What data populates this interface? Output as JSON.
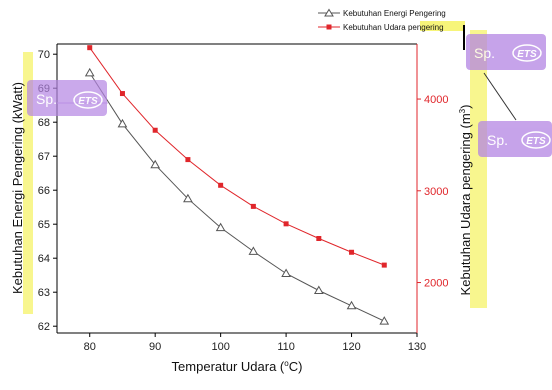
{
  "chart_data": {
    "type": "line",
    "title": "",
    "xlabel": "Temperatur Udara (",
    "xlabel_degree": "o",
    "xlabel_unit": "C)",
    "ylabel_left": "Kebutuhan Energi Pengering (kWatt)",
    "ylabel_right": "Kebutuhan Udara pengering (m",
    "ylabel_right_sup": "3",
    "ylabel_right_close": ")",
    "xlim": [
      75,
      130
    ],
    "ylim_left": [
      61.8,
      70.3
    ],
    "ylim_right": [
      1450,
      4600
    ],
    "x_ticks": [
      "80",
      "90",
      "100",
      "110",
      "120",
      "130"
    ],
    "y_left_ticks": [
      "62",
      "63",
      "64",
      "65",
      "66",
      "67",
      "68",
      "69",
      "70"
    ],
    "y_right_ticks": [
      "2000",
      "3000",
      "4000"
    ],
    "series": [
      {
        "name": "Kebutuhan Energi Pengering",
        "axis": "left",
        "color": "#555555",
        "marker": "triangle-open",
        "x": [
          80,
          85,
          90,
          95,
          100,
          105,
          110,
          115,
          120,
          125
        ],
        "y": [
          69.45,
          67.95,
          66.75,
          65.75,
          64.9,
          64.2,
          63.55,
          63.05,
          62.6,
          62.15
        ]
      },
      {
        "name": "Kebutuhan Udara pengering",
        "axis": "right",
        "color": "#e0262b",
        "marker": "square-filled",
        "x": [
          80,
          85,
          90,
          95,
          100,
          105,
          110,
          115,
          120,
          125
        ],
        "y": [
          4560,
          4060,
          3660,
          3340,
          3060,
          2830,
          2640,
          2480,
          2330,
          2190
        ]
      }
    ],
    "legend": {
      "position": "top-right",
      "entries": [
        "Kebutuhan Energi Pengering",
        "Kebutuhan Udara "
      ],
      "entry2_highlight": "pengering"
    },
    "grid": false
  },
  "overlays": {
    "sp_label": "Sp.",
    "ets_label": "ETS"
  }
}
